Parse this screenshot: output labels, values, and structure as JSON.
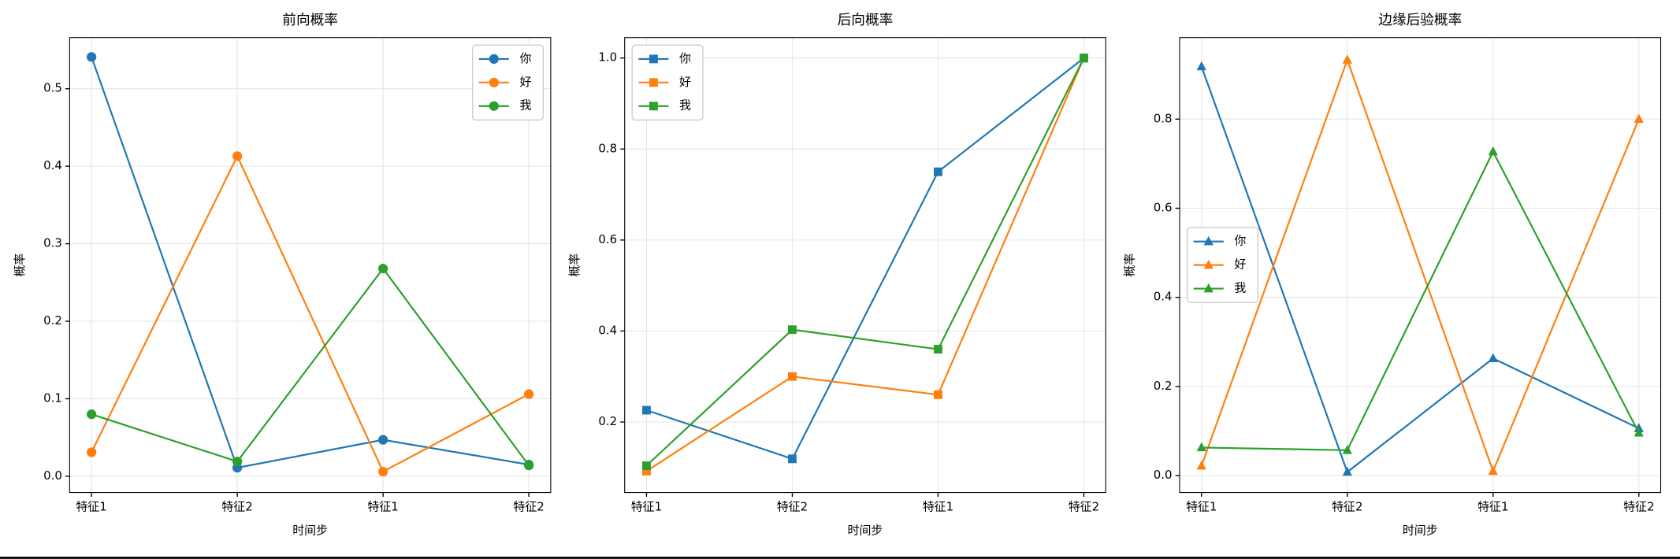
{
  "chart_data": [
    {
      "type": "line",
      "title": "前向概率",
      "x_label": "时间步",
      "y_label": "概率",
      "marker": "circle",
      "legend": "upper right",
      "grid": true,
      "categories": [
        "特征1",
        "特征2",
        "特征1",
        "特征2"
      ],
      "ylim": [
        -0.021,
        0.566
      ],
      "yticks": [
        {
          "value": 0.0,
          "label": "0.0"
        },
        0.1,
        0.2,
        0.3,
        0.4,
        0.5
      ],
      "series": [
        {
          "name": "你",
          "color": "#1f77b4",
          "values": [
            0.541,
            0.011,
            0.047,
            0.015
          ]
        },
        {
          "name": "好",
          "color": "#ff7f0e",
          "values": [
            0.031,
            0.413,
            0.006,
            0.106
          ]
        },
        {
          "name": "我",
          "color": "#2ca02c",
          "values": [
            0.08,
            0.019,
            0.268,
            0.014
          ]
        }
      ]
    },
    {
      "type": "line",
      "title": "后向概率",
      "x_label": "时间步",
      "y_label": "概率",
      "marker": "square",
      "legend": "upper left",
      "grid": true,
      "categories": [
        "特征1",
        "特征2",
        "特征1",
        "特征2"
      ],
      "ylim": [
        0.045,
        1.045
      ],
      "yticks": [
        0.2,
        0.4,
        0.6,
        0.8,
        {
          "value": 1.0,
          "label": "1.0"
        }
      ],
      "series": [
        {
          "name": "你",
          "color": "#1f77b4",
          "values": [
            0.226,
            0.119,
            0.75,
            1.0
          ]
        },
        {
          "name": "好",
          "color": "#ff7f0e",
          "values": [
            0.092,
            0.3,
            0.26,
            1.0
          ]
        },
        {
          "name": "我",
          "color": "#2ca02c",
          "values": [
            0.104,
            0.403,
            0.36,
            1.0
          ]
        }
      ]
    },
    {
      "type": "line",
      "title": "边缘后验概率",
      "x_label": "时间步",
      "y_label": "概率",
      "marker": "triangle",
      "legend": "center left",
      "grid": true,
      "categories": [
        "特征1",
        "特征2",
        "特征1",
        "特征2"
      ],
      "ylim": [
        -0.038,
        0.983
      ],
      "yticks": [
        {
          "value": 0.0,
          "label": "0.0"
        },
        0.2,
        0.4,
        0.6,
        0.8
      ],
      "series": [
        {
          "name": "你",
          "color": "#1f77b4",
          "values": [
            0.918,
            0.008,
            0.263,
            0.106
          ]
        },
        {
          "name": "好",
          "color": "#ff7f0e",
          "values": [
            0.022,
            0.933,
            0.01,
            0.8
          ]
        },
        {
          "name": "我",
          "color": "#2ca02c",
          "values": [
            0.063,
            0.057,
            0.727,
            0.096
          ]
        }
      ]
    }
  ]
}
